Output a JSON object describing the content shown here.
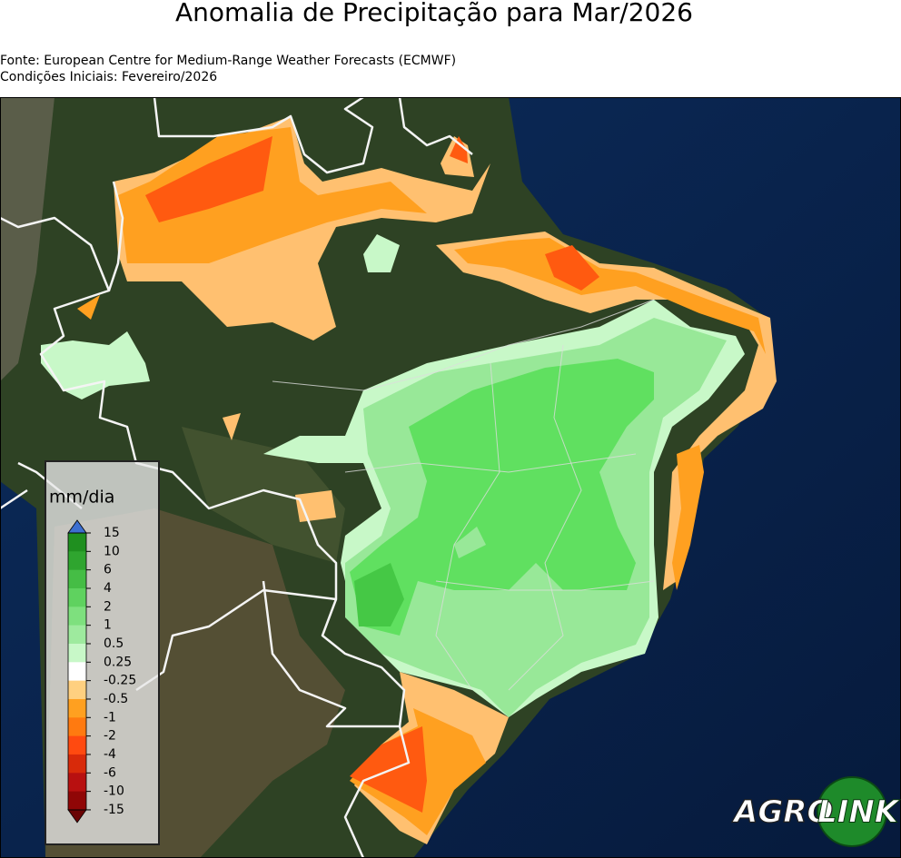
{
  "header": {
    "title": "Anomalia de Precipitação para Mar/2026",
    "source": "Fonte: European Centre for Medium-Range Weather Forecasts (ECMWF)",
    "initial_conditions": "Condições Iniciais: Fevereiro/2026"
  },
  "legend": {
    "title": "mm/dia",
    "labels": [
      "15",
      "10",
      "6",
      "4",
      "2",
      "1",
      "0.5",
      "0.25",
      "-0.25",
      "-0.5",
      "-1",
      "-2",
      "-4",
      "-6",
      "-10",
      "-15"
    ],
    "colors": [
      "#1f8f1f",
      "#2fa52f",
      "#45bd45",
      "#5fd25f",
      "#7ee07e",
      "#9eea9e",
      "#c8f8c8",
      "#ffffff",
      "#ffd080",
      "#ffa020",
      "#ff7a10",
      "#ff4a10",
      "#d82a0a",
      "#b81010",
      "#900606"
    ],
    "extend_colors": [
      "#3d6fd0",
      "#6a0404"
    ]
  },
  "logo": {
    "left": "AGRO",
    "right": "LINK"
  }
}
